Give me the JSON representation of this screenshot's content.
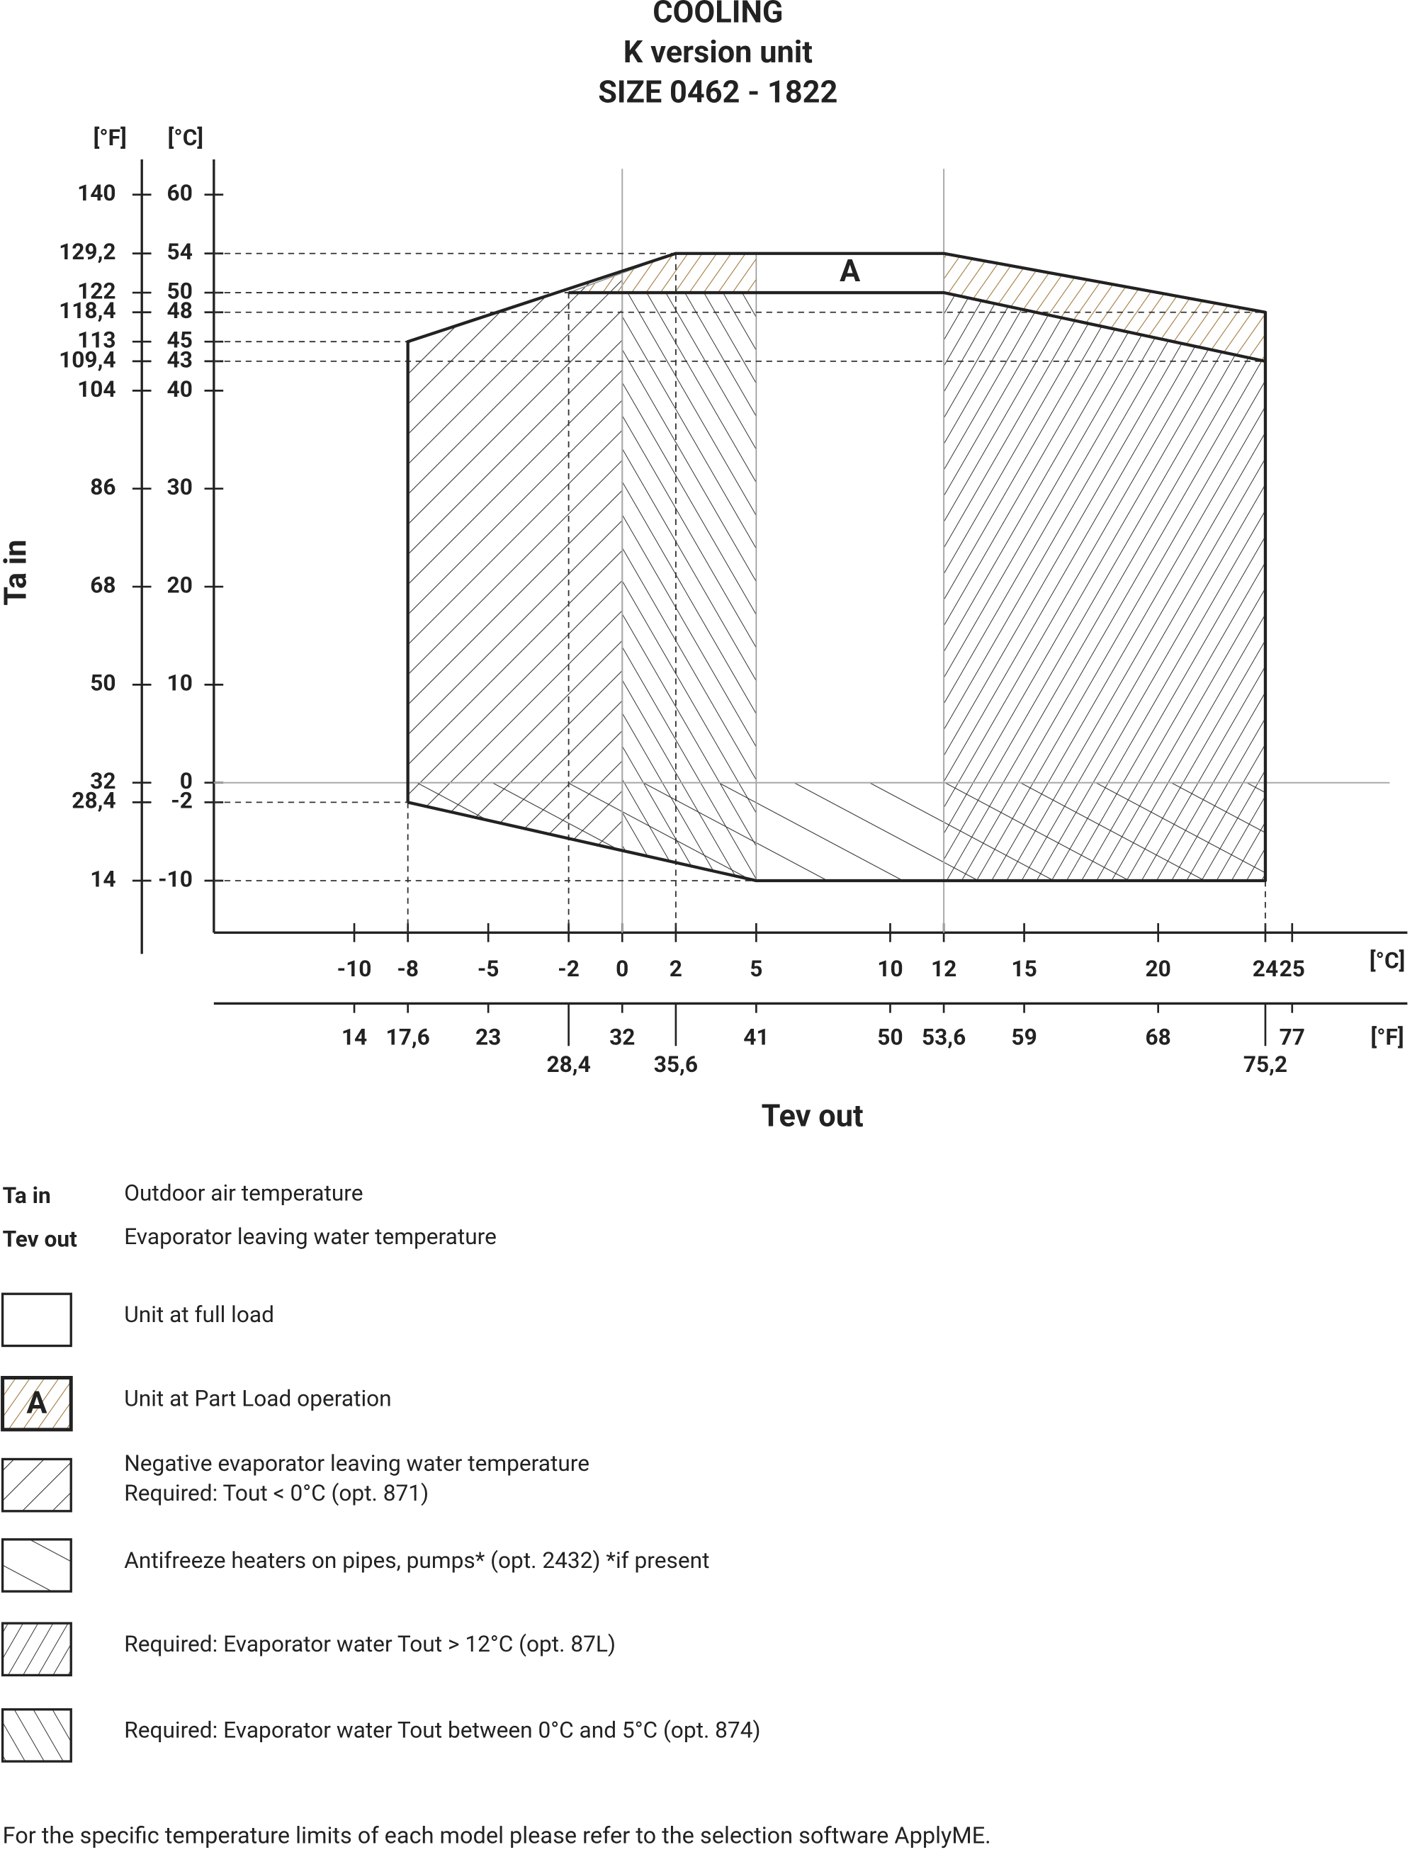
{
  "chart_data": {
    "type": "envelope",
    "title": "COOLING",
    "subtitle": [
      "K version unit",
      "SIZE  0462 - 1822"
    ],
    "xlabel": "Tev out",
    "ylabel": "Ta in",
    "x_unit": "[°C]",
    "x2_unit": "[°F]",
    "y_unit": "[°C]",
    "y2_unit": "[°F]",
    "xlim": [
      -15.24,
      29.3
    ],
    "ylim": [
      -15.3,
      63.6
    ],
    "xticks": [
      -10,
      -8,
      -5,
      -2,
      0,
      2,
      5,
      10,
      12,
      15,
      20,
      24,
      25
    ],
    "x2ticks": [
      {
        "value": -10,
        "label": "14"
      },
      {
        "value": -8,
        "label": "17,6"
      },
      {
        "value": -5,
        "label": "23"
      },
      {
        "value": -2,
        "label": "28,4"
      },
      {
        "value": 0,
        "label": "32"
      },
      {
        "value": 2,
        "label": "35,6"
      },
      {
        "value": 5,
        "label": "41"
      },
      {
        "value": 10,
        "label": "50"
      },
      {
        "value": 12,
        "label": "53,6"
      },
      {
        "value": 15,
        "label": "59"
      },
      {
        "value": 20,
        "label": "68"
      },
      {
        "value": 24,
        "label": "75,2"
      },
      {
        "value": 25,
        "label": "77"
      }
    ],
    "yticks": [
      60,
      54,
      50,
      48,
      45,
      43,
      40,
      30,
      20,
      10,
      0,
      -2,
      -10
    ],
    "y2ticks": [
      {
        "value": 60,
        "label": "140"
      },
      {
        "value": 54,
        "label": "129,2"
      },
      {
        "value": 50,
        "label": "122"
      },
      {
        "value": 48,
        "label": "118,4"
      },
      {
        "value": 45,
        "label": "113"
      },
      {
        "value": 43,
        "label": "109,4"
      },
      {
        "value": 40,
        "label": "104"
      },
      {
        "value": 30,
        "label": "86"
      },
      {
        "value": 20,
        "label": "68"
      },
      {
        "value": 10,
        "label": "50"
      },
      {
        "value": 0,
        "label": "32"
      },
      {
        "value": -2,
        "label": "28,4"
      },
      {
        "value": -10,
        "label": "14"
      }
    ],
    "grid_x": [
      0,
      12
    ],
    "grid_y": [
      0
    ],
    "regions": [
      {
        "pattern": "neg",
        "points": [
          [
            -8,
            -2
          ],
          [
            -8,
            45
          ],
          [
            0,
            52.2
          ],
          [
            0,
            -6.9
          ]
        ]
      },
      {
        "pattern": "antifreeze",
        "points": [
          [
            -8,
            -2
          ],
          [
            -8,
            0
          ],
          [
            24,
            0
          ],
          [
            24,
            -10
          ],
          [
            5,
            -10
          ]
        ]
      },
      {
        "pattern": "zero5",
        "points": [
          [
            0,
            -6.9
          ],
          [
            0,
            50
          ],
          [
            5,
            50
          ],
          [
            5,
            -10
          ]
        ]
      },
      {
        "pattern": "high",
        "points": [
          [
            12,
            50
          ],
          [
            24,
            43
          ],
          [
            24,
            -10
          ],
          [
            12,
            -10
          ]
        ]
      },
      {
        "pattern": "partload",
        "points": [
          [
            -2,
            50
          ],
          [
            2,
            54
          ],
          [
            5,
            54
          ],
          [
            5,
            50
          ]
        ]
      },
      {
        "pattern": "partload",
        "points": [
          [
            12,
            54
          ],
          [
            24,
            48
          ],
          [
            24,
            43
          ],
          [
            12,
            50
          ]
        ]
      }
    ],
    "outline": [
      [
        -8,
        -2
      ],
      [
        -8,
        45
      ],
      [
        2,
        54
      ],
      [
        12,
        54
      ],
      [
        24,
        48
      ],
      [
        24,
        -10
      ],
      [
        5,
        -10
      ],
      [
        -8,
        -2
      ]
    ],
    "inner_line": [
      [
        -2,
        50
      ],
      [
        12,
        50
      ],
      [
        24,
        43
      ]
    ],
    "region_label": "A",
    "h_guides": [
      [
        2,
        54
      ],
      [
        -2,
        50
      ],
      [
        24,
        48
      ],
      [
        -8,
        45
      ],
      [
        24,
        43
      ],
      [
        -8,
        -2
      ],
      [
        5,
        -10
      ]
    ],
    "v_guides": [
      [
        -8,
        -2
      ],
      [
        -2,
        50
      ],
      [
        2,
        54
      ],
      [
        24,
        -10
      ]
    ]
  },
  "definitions": [
    {
      "term": "Ta in",
      "text": "Outdoor air temperature"
    },
    {
      "term": "Tev out",
      "text": "Evaporator leaving water temperature"
    }
  ],
  "legend": [
    {
      "pattern": "full",
      "label": "Unit at full load"
    },
    {
      "pattern": "partload",
      "symbol": "A",
      "label": "Unit at Part Load operation"
    },
    {
      "pattern": "neg",
      "label": [
        "Negative evaporator leaving water temperature",
        "Required: Tout <  0°C (opt. 871)"
      ]
    },
    {
      "pattern": "antifreeze",
      "label": "Antifreeze heaters on pipes, pumps* (opt. 2432) *if present"
    },
    {
      "pattern": "high",
      "label": "Required: Evaporator water Tout > 12°C (opt. 87L)"
    },
    {
      "pattern": "zero5",
      "label": "Required: Evaporator water Tout between 0°C and 5°C (opt. 874)"
    }
  ],
  "note": "For the specific temperature limits of each model please refer to the selection software ApplyME."
}
